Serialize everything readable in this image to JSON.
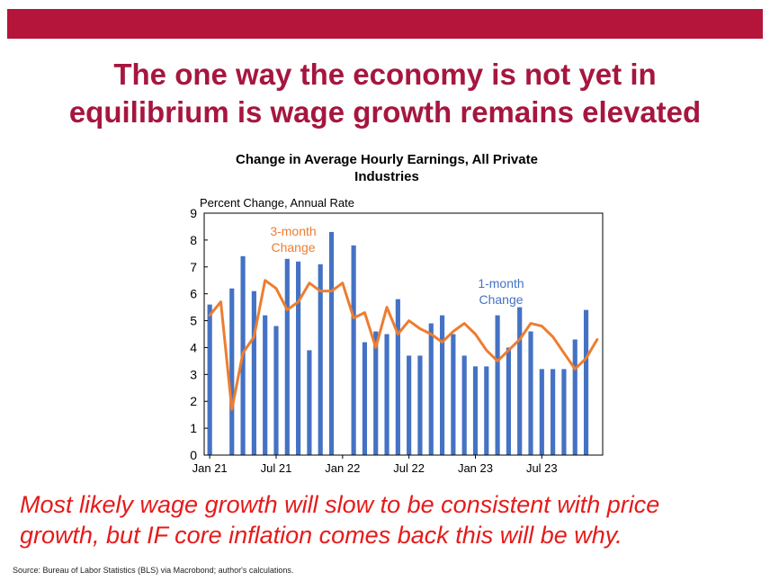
{
  "slide": {
    "headline_line1": "The one way the economy is not yet in",
    "headline_line2": "equilibrium is wage growth remains elevated",
    "takeaway_line1": "Most likely wage growth will slow to be consistent with price",
    "takeaway_line2": "growth, but IF core inflation comes back this will be why.",
    "source": "Source: Bureau of Labor Statistics (BLS) via Macrobond; author's calculations.",
    "accent_color": "#b5153a"
  },
  "chart_data": {
    "type": "bar",
    "title_line1": "Change in Average Hourly Earnings, All Private",
    "title_line2": "Industries",
    "ylabel": "Percent Change, Annual Rate",
    "ylim": [
      0,
      9
    ],
    "yticks": [
      "0",
      "1",
      "2",
      "3",
      "4",
      "5",
      "6",
      "7",
      "8",
      "9"
    ],
    "x_tick_labels": [
      "Jan 21",
      "Jul 21",
      "Jan 22",
      "Jul 22",
      "Jan 23",
      "Jul 23"
    ],
    "x_tick_index": [
      0,
      6,
      12,
      18,
      24,
      30
    ],
    "categories": [
      "Jan 21",
      "Feb 21",
      "Mar 21",
      "Apr 21",
      "May 21",
      "Jun 21",
      "Jul 21",
      "Aug 21",
      "Sep 21",
      "Oct 21",
      "Nov 21",
      "Dec 21",
      "Jan 22",
      "Feb 22",
      "Mar 22",
      "Apr 22",
      "May 22",
      "Jun 22",
      "Jul 22",
      "Aug 22",
      "Sep 22",
      "Oct 22",
      "Nov 22",
      "Dec 22",
      "Jan 23",
      "Feb 23",
      "Mar 23",
      "Apr 23",
      "May 23",
      "Jun 23",
      "Jul 23",
      "Aug 23",
      "Sep 23",
      "Oct 23",
      "Nov 23",
      "Dec 23"
    ],
    "series": [
      {
        "name": "1-month Change",
        "kind": "bar",
        "color": "#4472c4",
        "values": [
          5.6,
          0.0,
          6.2,
          7.4,
          6.1,
          5.2,
          4.8,
          7.3,
          7.2,
          3.9,
          7.1,
          8.3,
          0.0,
          7.8,
          4.2,
          4.6,
          4.5,
          5.8,
          3.7,
          3.7,
          4.9,
          5.2,
          4.5,
          3.7,
          3.3,
          3.3,
          5.2,
          4.0,
          5.5,
          4.6,
          3.2,
          3.2,
          3.2,
          4.3,
          5.4,
          0.0
        ]
      },
      {
        "name": "3-month Change",
        "kind": "line",
        "color": "#ed7d31",
        "values": [
          5.2,
          5.7,
          1.7,
          3.8,
          4.4,
          6.5,
          6.2,
          5.4,
          5.7,
          6.4,
          6.1,
          6.1,
          6.4,
          5.1,
          5.3,
          4.0,
          5.5,
          4.5,
          5.0,
          4.7,
          4.5,
          4.2,
          4.6,
          4.9,
          4.5,
          3.9,
          3.5,
          3.9,
          4.3,
          4.9,
          4.8,
          4.4,
          3.8,
          3.2,
          3.6,
          4.3
        ]
      }
    ],
    "annotations": [
      {
        "series": "3-month Change",
        "line1": "3-month",
        "line2": "Change",
        "color": "#ed7d31"
      },
      {
        "series": "1-month Change",
        "line1": "1-month",
        "line2": "Change",
        "color": "#4472c4"
      }
    ],
    "grid": false
  }
}
